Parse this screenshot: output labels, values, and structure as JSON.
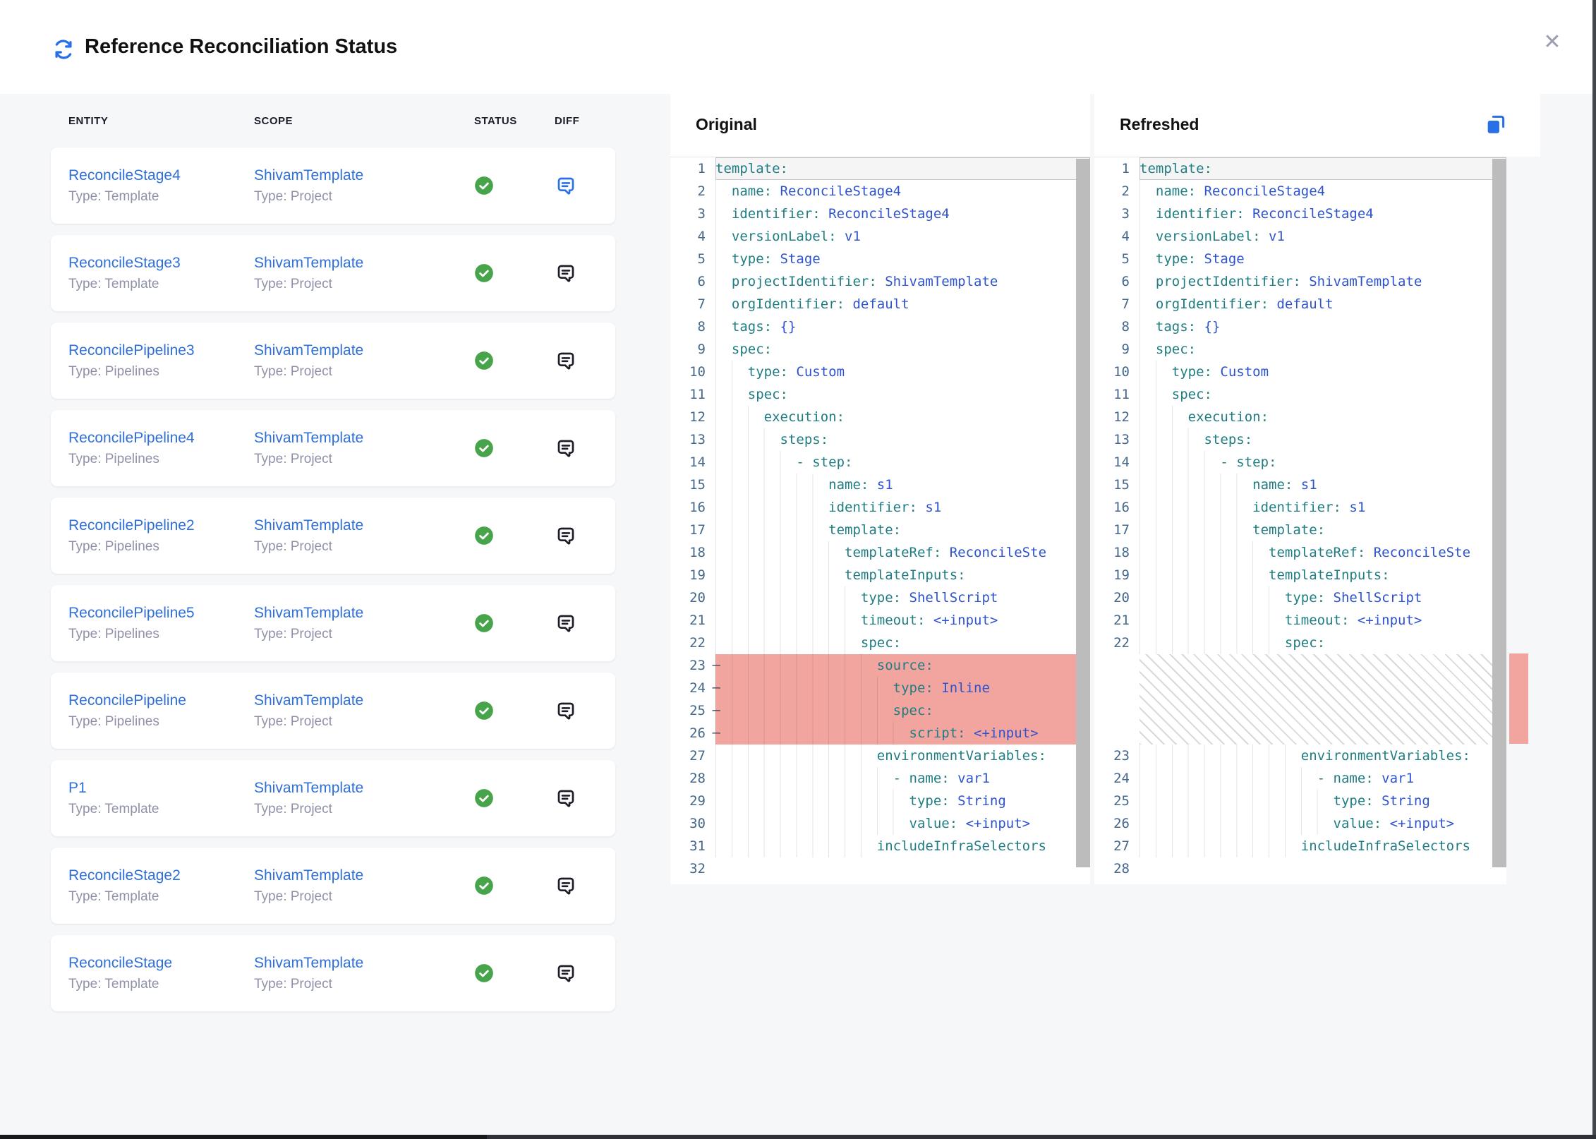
{
  "header": {
    "title": "Reference Reconciliation Status",
    "close_label": "✕"
  },
  "table": {
    "columns": [
      "ENTITY",
      "SCOPE",
      "STATUS",
      "DIFF"
    ],
    "rows": [
      {
        "entity": "ReconcileStage4",
        "entity_type": "Type: Template",
        "scope": "ShivamTemplate",
        "scope_type": "Type: Project",
        "status": "success",
        "diff_active": true
      },
      {
        "entity": "ReconcileStage3",
        "entity_type": "Type: Template",
        "scope": "ShivamTemplate",
        "scope_type": "Type: Project",
        "status": "success",
        "diff_active": false
      },
      {
        "entity": "ReconcilePipeline3",
        "entity_type": "Type: Pipelines",
        "scope": "ShivamTemplate",
        "scope_type": "Type: Project",
        "status": "success",
        "diff_active": false
      },
      {
        "entity": "ReconcilePipeline4",
        "entity_type": "Type: Pipelines",
        "scope": "ShivamTemplate",
        "scope_type": "Type: Project",
        "status": "success",
        "diff_active": false
      },
      {
        "entity": "ReconcilePipeline2",
        "entity_type": "Type: Pipelines",
        "scope": "ShivamTemplate",
        "scope_type": "Type: Project",
        "status": "success",
        "diff_active": false
      },
      {
        "entity": "ReconcilePipeline5",
        "entity_type": "Type: Pipelines",
        "scope": "ShivamTemplate",
        "scope_type": "Type: Project",
        "status": "success",
        "diff_active": false
      },
      {
        "entity": "ReconcilePipeline",
        "entity_type": "Type: Pipelines",
        "scope": "ShivamTemplate",
        "scope_type": "Type: Project",
        "status": "success",
        "diff_active": false
      },
      {
        "entity": "P1",
        "entity_type": "Type: Template",
        "scope": "ShivamTemplate",
        "scope_type": "Type: Project",
        "status": "success",
        "diff_active": false
      },
      {
        "entity": "ReconcileStage2",
        "entity_type": "Type: Template",
        "scope": "ShivamTemplate",
        "scope_type": "Type: Project",
        "status": "success",
        "diff_active": false
      },
      {
        "entity": "ReconcileStage",
        "entity_type": "Type: Template",
        "scope": "ShivamTemplate",
        "scope_type": "Type: Project",
        "status": "success",
        "diff_active": false
      }
    ]
  },
  "panels": {
    "original": {
      "title": "Original",
      "lines": [
        {
          "n": 1,
          "i": 0,
          "k": "template"
        },
        {
          "n": 2,
          "i": 1,
          "k": "name",
          "v": "ReconcileStage4"
        },
        {
          "n": 3,
          "i": 1,
          "k": "identifier",
          "v": "ReconcileStage4"
        },
        {
          "n": 4,
          "i": 1,
          "k": "versionLabel",
          "v": "v1"
        },
        {
          "n": 5,
          "i": 1,
          "k": "type",
          "v": "Stage"
        },
        {
          "n": 6,
          "i": 1,
          "k": "projectIdentifier",
          "v": "ShivamTemplate"
        },
        {
          "n": 7,
          "i": 1,
          "k": "orgIdentifier",
          "v": "default"
        },
        {
          "n": 8,
          "i": 1,
          "k": "tags",
          "v": "{}"
        },
        {
          "n": 9,
          "i": 1,
          "k": "spec"
        },
        {
          "n": 10,
          "i": 2,
          "k": "type",
          "v": "Custom"
        },
        {
          "n": 11,
          "i": 2,
          "k": "spec"
        },
        {
          "n": 12,
          "i": 3,
          "k": "execution"
        },
        {
          "n": 13,
          "i": 4,
          "k": "steps"
        },
        {
          "n": 14,
          "i": 5,
          "d": true,
          "k": "step"
        },
        {
          "n": 15,
          "i": 7,
          "k": "name",
          "v": "s1"
        },
        {
          "n": 16,
          "i": 7,
          "k": "identifier",
          "v": "s1"
        },
        {
          "n": 17,
          "i": 7,
          "k": "template"
        },
        {
          "n": 18,
          "i": 8,
          "k": "templateRef",
          "v": "ReconcileSte"
        },
        {
          "n": 19,
          "i": 8,
          "k": "templateInputs"
        },
        {
          "n": 20,
          "i": 9,
          "k": "type",
          "v": "ShellScript"
        },
        {
          "n": 21,
          "i": 9,
          "k": "timeout",
          "v": "<+input>"
        },
        {
          "n": 22,
          "i": 9,
          "k": "spec"
        },
        {
          "n": 23,
          "i": 10,
          "k": "source",
          "del": true
        },
        {
          "n": 24,
          "i": 11,
          "k": "type",
          "v": "Inline",
          "del": true
        },
        {
          "n": 25,
          "i": 11,
          "k": "spec",
          "del": true
        },
        {
          "n": 26,
          "i": 12,
          "k": "script",
          "v": "<+input>",
          "del": true
        },
        {
          "n": 27,
          "i": 10,
          "k": "environmentVariables"
        },
        {
          "n": 28,
          "i": 11,
          "d": true,
          "k": "name",
          "v": "var1"
        },
        {
          "n": 29,
          "i": 12,
          "k": "type",
          "v": "String"
        },
        {
          "n": 30,
          "i": 12,
          "k": "value",
          "v": "<+input>"
        },
        {
          "n": 31,
          "i": 10,
          "k": "includeInfraSelectors",
          "nc": true
        },
        {
          "n": 32
        }
      ]
    },
    "refreshed": {
      "title": "Refreshed",
      "lines": [
        {
          "n": 1,
          "i": 0,
          "k": "template"
        },
        {
          "n": 2,
          "i": 1,
          "k": "name",
          "v": "ReconcileStage4"
        },
        {
          "n": 3,
          "i": 1,
          "k": "identifier",
          "v": "ReconcileStage4"
        },
        {
          "n": 4,
          "i": 1,
          "k": "versionLabel",
          "v": "v1"
        },
        {
          "n": 5,
          "i": 1,
          "k": "type",
          "v": "Stage"
        },
        {
          "n": 6,
          "i": 1,
          "k": "projectIdentifier",
          "v": "ShivamTemplate"
        },
        {
          "n": 7,
          "i": 1,
          "k": "orgIdentifier",
          "v": "default"
        },
        {
          "n": 8,
          "i": 1,
          "k": "tags",
          "v": "{}"
        },
        {
          "n": 9,
          "i": 1,
          "k": "spec"
        },
        {
          "n": 10,
          "i": 2,
          "k": "type",
          "v": "Custom"
        },
        {
          "n": 11,
          "i": 2,
          "k": "spec"
        },
        {
          "n": 12,
          "i": 3,
          "k": "execution"
        },
        {
          "n": 13,
          "i": 4,
          "k": "steps"
        },
        {
          "n": 14,
          "i": 5,
          "d": true,
          "k": "step"
        },
        {
          "n": 15,
          "i": 7,
          "k": "name",
          "v": "s1"
        },
        {
          "n": 16,
          "i": 7,
          "k": "identifier",
          "v": "s1"
        },
        {
          "n": 17,
          "i": 7,
          "k": "template"
        },
        {
          "n": 18,
          "i": 8,
          "k": "templateRef",
          "v": "ReconcileSte"
        },
        {
          "n": 19,
          "i": 8,
          "k": "templateInputs"
        },
        {
          "n": 20,
          "i": 9,
          "k": "type",
          "v": "ShellScript"
        },
        {
          "n": 21,
          "i": 9,
          "k": "timeout",
          "v": "<+input>"
        },
        {
          "n": 22,
          "i": 9,
          "k": "spec"
        },
        {
          "hatch": true
        },
        {
          "n": 23,
          "i": 10,
          "k": "environmentVariables"
        },
        {
          "n": 24,
          "i": 11,
          "d": true,
          "k": "name",
          "v": "var1"
        },
        {
          "n": 25,
          "i": 12,
          "k": "type",
          "v": "String"
        },
        {
          "n": 26,
          "i": 12,
          "k": "value",
          "v": "<+input>"
        },
        {
          "n": 27,
          "i": 10,
          "k": "includeInfraSelectors",
          "nc": true
        },
        {
          "n": 28
        }
      ]
    }
  },
  "colors": {
    "accent": "#2970e8",
    "link": "#2e6fd8",
    "success": "#47a44b",
    "yaml_key": "#1f7d83",
    "yaml_value": "#2d53cf",
    "line_number": "#44678c",
    "removed_highlight": "#f2a49e",
    "muted_text": "#8f91a8",
    "dark_icon": "#1c1c28"
  }
}
